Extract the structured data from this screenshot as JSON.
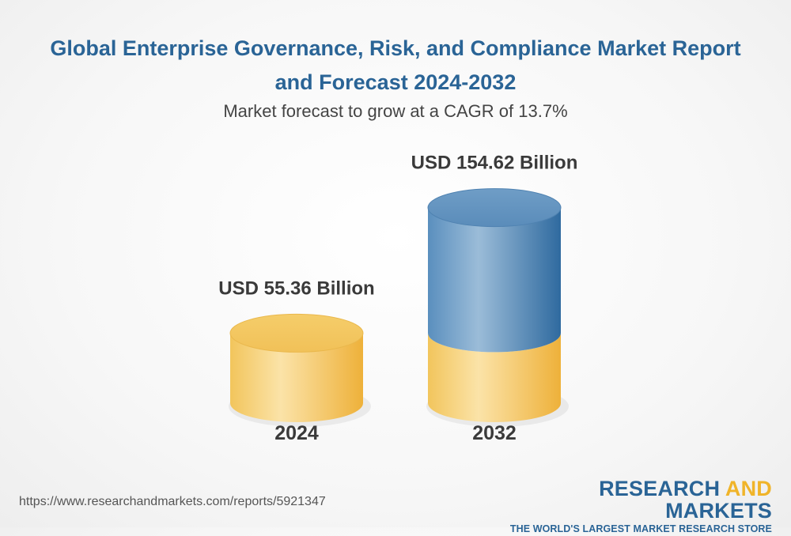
{
  "header": {
    "title": "Global Enterprise Governance, Risk, and Compliance Market Report and Forecast 2024-2032",
    "subtitle": "Market forecast to grow at a CAGR of 13.7%"
  },
  "chart_data": {
    "type": "bar",
    "style": "3d-cylinder",
    "categories": [
      "2024",
      "2032"
    ],
    "values": [
      55.36,
      154.62
    ],
    "value_labels": [
      "USD 55.36 Billion",
      "USD 154.62 Billion"
    ],
    "unit": "USD Billion",
    "title": "Global Enterprise Governance, Risk, and Compliance Market Report and Forecast 2024-2032",
    "subtitle": "Market forecast to grow at a CAGR of 13.7%",
    "grid": false,
    "legend": "none"
  },
  "colors": {
    "title": "#2a6496",
    "base_segment": "#f3c35a",
    "growth_segment": "#5b8fbd",
    "brand_accent": "#f0b429"
  },
  "footer": {
    "url": "https://www.researchandmarkets.com/reports/5921347",
    "brand_word1": "RESEARCH",
    "brand_word2": "AND",
    "brand_word3": "MARKETS",
    "brand_tagline": "THE WORLD'S LARGEST MARKET RESEARCH STORE"
  }
}
